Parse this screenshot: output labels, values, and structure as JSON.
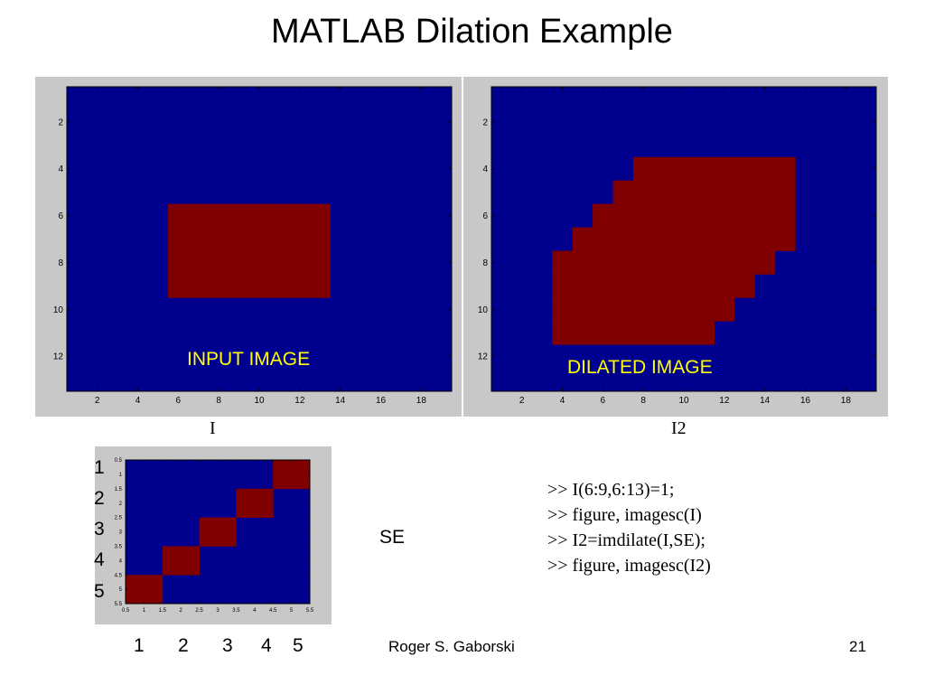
{
  "slide": {
    "title": "MATLAB Dilation Example",
    "footer_author": "Roger S. Gaborski",
    "page_number": "21"
  },
  "colors": {
    "background_blue": "#00008f",
    "foreground_red": "#800000",
    "figure_gray": "#c8c8c8",
    "label_yellow": "#ffff00"
  },
  "input_figure": {
    "caption": "I",
    "overlay_label": "INPUT IMAGE",
    "x_ticks": [
      "2",
      "4",
      "6",
      "8",
      "10",
      "12",
      "14",
      "16",
      "18"
    ],
    "y_ticks": [
      "2",
      "4",
      "6",
      "8",
      "10",
      "12"
    ]
  },
  "dilated_figure": {
    "caption": "I2",
    "overlay_label": "DILATED IMAGE",
    "x_ticks": [
      "2",
      "4",
      "6",
      "8",
      "10",
      "12",
      "14",
      "16",
      "18"
    ],
    "y_ticks": [
      "2",
      "4",
      "6",
      "8",
      "10",
      "12"
    ]
  },
  "se_figure": {
    "label": "SE",
    "row_labels": [
      "1",
      "2",
      "3",
      "4",
      "5"
    ],
    "col_labels": [
      "1",
      "2",
      "3",
      "4",
      "5"
    ],
    "x_ticks": [
      "0.5",
      "1",
      "1.5",
      "2",
      "2.5",
      "3",
      "3.5",
      "4",
      "4.5",
      "5",
      "5.5"
    ],
    "y_ticks": [
      "0.5",
      "1",
      "1.5",
      "2",
      "2.5",
      "3",
      "3.5",
      "4",
      "4.5",
      "5",
      "5.5"
    ]
  },
  "code_lines": [
    ">> I(6:9,6:13)=1;",
    ">> figure, imagesc(I)",
    ">> I2=imdilate(I,SE);",
    ">> figure, imagesc(I2)"
  ],
  "chart_data": [
    {
      "type": "heatmap",
      "name": "I",
      "grid_size": [
        13,
        19
      ],
      "value_range": [
        0,
        1
      ],
      "foreground": [
        {
          "rows": [
            6,
            9
          ],
          "cols": [
            6,
            13
          ]
        }
      ],
      "xlim": [
        0.5,
        19.5
      ],
      "ylim": [
        0.5,
        13.5
      ]
    },
    {
      "type": "heatmap",
      "name": "I2",
      "grid_size": [
        13,
        19
      ],
      "value_range": [
        0,
        1
      ],
      "foreground": [
        {
          "row": 4,
          "cols": [
            8,
            15
          ]
        },
        {
          "row": 5,
          "cols": [
            7,
            15
          ]
        },
        {
          "row": 6,
          "cols": [
            6,
            15
          ]
        },
        {
          "row": 7,
          "cols": [
            5,
            15
          ]
        },
        {
          "row": 8,
          "cols": [
            4,
            14
          ]
        },
        {
          "row": 9,
          "cols": [
            4,
            13
          ]
        },
        {
          "row": 10,
          "cols": [
            4,
            12
          ]
        },
        {
          "row": 11,
          "cols": [
            4,
            11
          ]
        }
      ],
      "xlim": [
        0.5,
        19.5
      ],
      "ylim": [
        0.5,
        13.5
      ]
    },
    {
      "type": "heatmap",
      "name": "SE",
      "grid_size": [
        5,
        5
      ],
      "value_range": [
        0,
        1
      ],
      "foreground": [
        {
          "row": 1,
          "col": 5
        },
        {
          "row": 2,
          "col": 4
        },
        {
          "row": 3,
          "col": 3
        },
        {
          "row": 4,
          "col": 2
        },
        {
          "row": 5,
          "col": 1
        }
      ],
      "xlim": [
        0.5,
        5.5
      ],
      "ylim": [
        0.5,
        5.5
      ]
    }
  ]
}
